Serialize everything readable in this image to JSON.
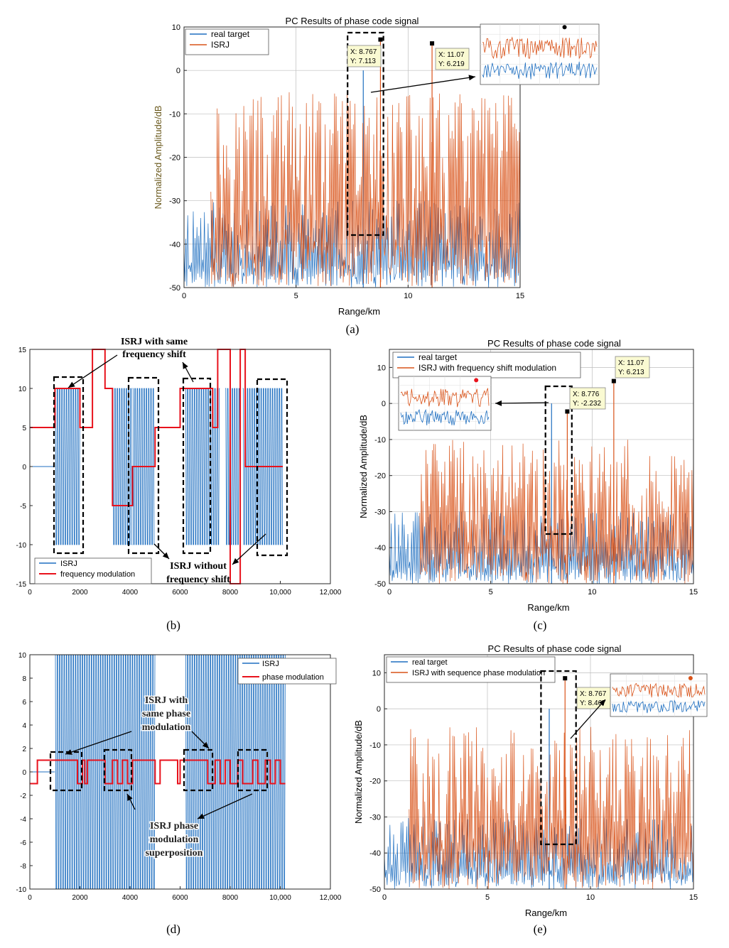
{
  "colors": {
    "real": "#1f6fc0",
    "isrj": "#d95319",
    "mod": "#e8121c",
    "grid": "#bdbdbd",
    "axis": "#262626",
    "ylabel": "#000000",
    "ylabel_a": "#6b5a1e",
    "tip_bg": "#fafad2"
  },
  "chart_data": [
    {
      "id": "a",
      "type": "line",
      "title": "PC Results of phase code signal",
      "xlabel": "Range/km",
      "ylabel": "Normalized Amplitude/dB",
      "xlim": [
        0,
        15
      ],
      "ylim": [
        -50,
        10
      ],
      "xticks": [
        0,
        5,
        10,
        15
      ],
      "yticks": [
        -50,
        -40,
        -30,
        -20,
        -10,
        0,
        10
      ],
      "xtick_labels": [
        "0",
        "5",
        "10",
        "15"
      ],
      "ytick_labels": [
        "-50",
        "-40",
        "-30",
        "-20",
        "-10",
        "0",
        "10"
      ],
      "legend": [
        "real target",
        "ISRJ"
      ],
      "series": [
        {
          "name": "real target",
          "noise_range": [
            0,
            15
          ],
          "noise_level_db": [
            -50,
            -30
          ],
          "peaks": [
            {
              "x": 8.0,
              "y": 0
            }
          ]
        },
        {
          "name": "ISRJ",
          "noise_range": [
            1.2,
            15
          ],
          "noise_level_db": [
            -50,
            -5
          ],
          "peaks": [
            {
              "x": 8.767,
              "y": 7.113
            },
            {
              "x": 11.07,
              "y": 6.219
            }
          ]
        }
      ],
      "annotations": [
        {
          "label_x": "X: 8.767",
          "label_y": "Y: 7.113",
          "x": 8.767,
          "y": 7.113
        },
        {
          "label_x": "X: 11.07",
          "label_y": "Y: 6.219",
          "x": 11.07,
          "y": 6.219
        }
      ],
      "zoom_box_x": [
        7.3,
        8.9
      ],
      "caption": "(a)"
    },
    {
      "id": "b",
      "type": "line",
      "xlim": [
        0,
        12000
      ],
      "ylim": [
        -15,
        15
      ],
      "xticks": [
        0,
        2000,
        4000,
        6000,
        8000,
        10000,
        12000
      ],
      "yticks": [
        -15,
        -10,
        -5,
        0,
        5,
        10,
        15
      ],
      "xtick_labels": [
        "0",
        "2000",
        "4000",
        "6000",
        "8000",
        "10,000",
        "12,000"
      ],
      "ytick_labels": [
        "-15",
        "-10",
        "-5",
        "0",
        "5",
        "10",
        "15"
      ],
      "legend": [
        "ISRJ",
        "frequency modulation"
      ],
      "isrj_segments": [
        [
          1000,
          2000
        ],
        [
          3300,
          4100
        ],
        [
          4100,
          5000
        ],
        [
          6200,
          7600
        ],
        [
          7800,
          8400
        ],
        [
          8500,
          10100
        ]
      ],
      "frequency_modulation": {
        "x": [
          0,
          1000,
          1000,
          2000,
          2000,
          2500,
          2500,
          3000,
          3000,
          3300,
          3300,
          4100,
          4100,
          5000,
          5000,
          6000,
          6000,
          7000,
          7000,
          7300,
          7300,
          7500,
          7500,
          8000,
          8000,
          8400,
          8400,
          8600,
          8600,
          9000,
          9000,
          10100
        ],
        "y": [
          5,
          5,
          10,
          10,
          5,
          5,
          15,
          15,
          10,
          10,
          -5,
          -5,
          0,
          0,
          5,
          5,
          10,
          10,
          10,
          10,
          5,
          5,
          15,
          15,
          -15,
          -15,
          15,
          15,
          0,
          0,
          0,
          0
        ]
      },
      "annotations": {
        "same_shift_line1": "ISRJ with same",
        "same_shift_line2": "frequency shift",
        "without_shift_line1": "ISRJ without",
        "without_shift_line2": "frequency shift"
      },
      "caption": "(b)"
    },
    {
      "id": "c",
      "type": "line",
      "title": "PC Results of phase code signal",
      "xlabel": "Range/km",
      "ylabel": "Normalized Amplitude/dB",
      "xlim": [
        0,
        15
      ],
      "ylim": [
        -50,
        15
      ],
      "xticks": [
        0,
        5,
        10,
        15
      ],
      "yticks": [
        -50,
        -40,
        -30,
        -20,
        -10,
        0,
        10
      ],
      "xtick_labels": [
        "0",
        "5",
        "10",
        "15"
      ],
      "ytick_labels": [
        "-50",
        "-40",
        "-30",
        "-20",
        "-10",
        "0",
        "10"
      ],
      "legend": [
        "real target",
        "ISRJ with frequency shift modulation"
      ],
      "series": [
        {
          "name": "real target",
          "noise_range": [
            0,
            15
          ],
          "noise_level_db": [
            -50,
            -30
          ],
          "peaks": [
            {
              "x": 8.0,
              "y": 0
            }
          ]
        },
        {
          "name": "ISRJ with frequency shift modulation",
          "noise_range": [
            1.5,
            15
          ],
          "noise_level_db": [
            -50,
            -10
          ],
          "peaks": [
            {
              "x": 8.776,
              "y": -2.232
            },
            {
              "x": 11.07,
              "y": 6.213
            }
          ]
        }
      ],
      "annotations": [
        {
          "label_x": "X: 8.776",
          "label_y": "Y: -2.232",
          "x": 8.776,
          "y": -2.232
        },
        {
          "label_x": "X: 11.07",
          "label_y": "Y: 6.213",
          "x": 11.07,
          "y": 6.213
        }
      ],
      "zoom_box_x": [
        7.7,
        9.0
      ],
      "caption": "(c)"
    },
    {
      "id": "d",
      "type": "line",
      "xlim": [
        0,
        12000
      ],
      "ylim": [
        -10,
        10
      ],
      "xticks": [
        0,
        2000,
        4000,
        6000,
        8000,
        10000,
        12000
      ],
      "yticks": [
        -10,
        -8,
        -6,
        -4,
        -2,
        0,
        2,
        4,
        6,
        8,
        10
      ],
      "xtick_labels": [
        "0",
        "2000",
        "4000",
        "6000",
        "8000",
        "10,000",
        "12,000"
      ],
      "ytick_labels": [
        "-10",
        "-8",
        "-6",
        "-4",
        "-2",
        "0",
        "2",
        "4",
        "6",
        "8",
        "10"
      ],
      "legend": [
        "ISRJ",
        "phase modulation"
      ],
      "isrj_segments": [
        [
          1000,
          5000
        ],
        [
          6200,
          10200
        ]
      ],
      "phase_modulation": {
        "x": [
          0,
          300,
          300,
          1000,
          1000,
          1900,
          1900,
          2100,
          2100,
          2200,
          2200,
          2300,
          2300,
          3000,
          3000,
          3300,
          3300,
          3500,
          3500,
          3700,
          3700,
          3900,
          3900,
          4100,
          4100,
          5000,
          5000,
          5200,
          5200,
          5900,
          5900,
          6000,
          6000,
          6200,
          6200,
          7100,
          7100,
          7400,
          7400,
          7600,
          7600,
          7800,
          7800,
          8000,
          8000,
          8300,
          8300,
          8500,
          8500,
          8900,
          8900,
          9100,
          9100,
          9400,
          9400,
          9600,
          9600,
          9800,
          9800,
          10000,
          10000,
          10200
        ],
        "y": [
          -1,
          -1,
          1,
          1,
          1,
          1,
          -1,
          -1,
          1,
          1,
          -1,
          -1,
          1,
          1,
          -1,
          -1,
          1,
          1,
          -1,
          -1,
          1,
          1,
          -1,
          -1,
          1,
          1,
          -1,
          -1,
          1,
          1,
          -1,
          -1,
          1,
          1,
          1,
          1,
          -1,
          -1,
          1,
          1,
          -1,
          -1,
          1,
          1,
          -1,
          -1,
          1,
          1,
          -1,
          -1,
          1,
          1,
          -1,
          -1,
          1,
          1,
          -1,
          -1,
          1,
          1,
          -1,
          -1
        ]
      },
      "annotations": {
        "same_phase_line1": "ISRJ with",
        "same_phase_line2": "same phase",
        "same_phase_line3": "modulation",
        "superpos_line1": "ISRJ phase",
        "superpos_line2": "modulation",
        "superpos_line3": "superposition"
      },
      "caption": "(d)"
    },
    {
      "id": "e",
      "type": "line",
      "title": "PC Results of phase code signal",
      "xlabel": "Range/km",
      "ylabel": "Normalized Amplitude/dB",
      "xlim": [
        0,
        15
      ],
      "ylim": [
        -50,
        15
      ],
      "xticks": [
        0,
        5,
        10,
        15
      ],
      "yticks": [
        -50,
        -40,
        -30,
        -20,
        -10,
        0,
        10
      ],
      "xtick_labels": [
        "0",
        "5",
        "10",
        "15"
      ],
      "ytick_labels": [
        "-50",
        "-40",
        "-30",
        "-20",
        "-10",
        "0",
        "10"
      ],
      "legend": [
        "real target",
        "ISRJ with sequence phase modulation"
      ],
      "series": [
        {
          "name": "real target",
          "noise_range": [
            0,
            15
          ],
          "noise_level_db": [
            -50,
            -30
          ],
          "peaks": [
            {
              "x": 8.0,
              "y": 0
            }
          ]
        },
        {
          "name": "ISRJ with sequence phase modulation",
          "noise_range": [
            1.2,
            15
          ],
          "noise_level_db": [
            -50,
            -5
          ],
          "peaks": [
            {
              "x": 8.767,
              "y": 8.467
            }
          ]
        }
      ],
      "annotations": [
        {
          "label_x": "X: 8.767",
          "label_y": "Y: 8.467",
          "x": 8.767,
          "y": 8.467
        }
      ],
      "zoom_box_x": [
        7.6,
        9.3
      ],
      "caption": "(e)"
    }
  ]
}
